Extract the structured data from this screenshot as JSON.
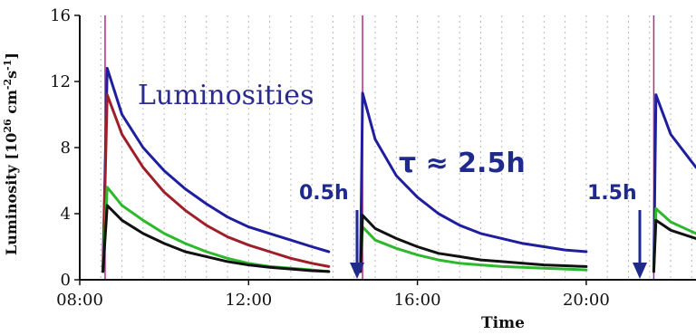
{
  "chart_data": {
    "type": "line",
    "title": "",
    "ylabel_main": "Luminosity [10",
    "ylabel_sup1": "26",
    "ylabel_mid": " cm",
    "ylabel_sup2": "-2",
    "ylabel_mid2": "s",
    "ylabel_sup3": "-1",
    "ylabel_end": "]",
    "xlabel": "Time",
    "x_ticks": [
      "08:00",
      "12:00",
      "16:00",
      "20:00"
    ],
    "x_tick_hours": [
      8,
      12,
      16,
      20
    ],
    "y_ticks": [
      "0",
      "4",
      "8",
      "12",
      "16"
    ],
    "y_tick_values": [
      0,
      4,
      8,
      12,
      16
    ],
    "xlim": [
      8.0,
      22.6
    ],
    "ylim": [
      0,
      16
    ],
    "grid": "vertical dotted",
    "annotations": {
      "luminosities": "Luminosities",
      "tau": "τ ≈ 2.5h",
      "gap1": "0.5h",
      "gap2": "1.5h"
    },
    "fill_markers_hours": [
      8.6,
      14.7,
      21.6
    ],
    "colors": {
      "blue": "#1f1f9e",
      "red": "#9e1f2a",
      "green": "#2eb82e",
      "black": "#111111",
      "marker": "#b02a8a",
      "grid": "#b8b8b8",
      "annotation": "#1f2a8c"
    },
    "series": [
      {
        "color": "blue",
        "x": [
          8.55,
          8.65,
          9.0,
          9.5,
          10.0,
          10.5,
          11.0,
          11.5,
          12.0,
          12.5,
          13.0,
          13.5,
          13.9,
          14.65,
          14.7,
          15.0,
          15.5,
          16.0,
          16.5,
          17.0,
          17.5,
          18.0,
          18.5,
          19.0,
          19.5,
          20.0,
          21.6,
          21.65,
          22.0,
          22.6
        ],
        "y": [
          0.5,
          12.8,
          10.0,
          8.0,
          6.6,
          5.5,
          4.6,
          3.8,
          3.2,
          2.8,
          2.4,
          2.0,
          1.7,
          0.5,
          11.3,
          8.5,
          6.3,
          5.0,
          4.0,
          3.3,
          2.8,
          2.5,
          2.2,
          2.0,
          1.8,
          1.7,
          0.5,
          11.2,
          8.8,
          6.8
        ],
        "segments": [
          [
            0,
            12
          ],
          [
            13,
            25
          ],
          [
            26,
            29
          ]
        ]
      },
      {
        "color": "red",
        "x": [
          8.55,
          8.65,
          9.0,
          9.5,
          10.0,
          10.5,
          11.0,
          11.5,
          12.0,
          12.5,
          13.0,
          13.5,
          13.9
        ],
        "y": [
          0.5,
          11.2,
          8.8,
          6.8,
          5.3,
          4.2,
          3.3,
          2.6,
          2.1,
          1.7,
          1.3,
          1.0,
          0.8
        ],
        "segments": [
          [
            0,
            12
          ]
        ]
      },
      {
        "color": "green",
        "x": [
          8.55,
          8.65,
          9.0,
          9.5,
          10.0,
          10.5,
          11.0,
          11.5,
          12.0,
          12.5,
          13.0,
          13.5,
          13.9,
          14.65,
          14.7,
          15.0,
          15.5,
          16.0,
          16.5,
          17.0,
          17.5,
          18.0,
          18.5,
          19.0,
          19.5,
          20.0,
          21.6,
          21.65,
          22.0,
          22.6
        ],
        "y": [
          0.5,
          5.6,
          4.5,
          3.6,
          2.8,
          2.2,
          1.7,
          1.3,
          1.0,
          0.8,
          0.7,
          0.6,
          0.5,
          0.5,
          3.2,
          2.4,
          1.9,
          1.5,
          1.2,
          1.0,
          0.9,
          0.8,
          0.75,
          0.7,
          0.65,
          0.6,
          0.5,
          4.3,
          3.5,
          2.8
        ],
        "segments": [
          [
            0,
            12
          ],
          [
            13,
            25
          ],
          [
            26,
            29
          ]
        ]
      },
      {
        "color": "black",
        "x": [
          8.55,
          8.65,
          9.0,
          9.5,
          10.0,
          10.5,
          11.0,
          11.5,
          12.0,
          12.5,
          13.0,
          13.5,
          13.9,
          14.65,
          14.7,
          15.0,
          15.5,
          16.0,
          16.5,
          17.0,
          17.5,
          18.0,
          18.5,
          19.0,
          19.5,
          20.0,
          21.6,
          21.65,
          22.0,
          22.6
        ],
        "y": [
          0.5,
          4.5,
          3.6,
          2.8,
          2.2,
          1.7,
          1.4,
          1.1,
          0.9,
          0.75,
          0.65,
          0.55,
          0.5,
          0.5,
          3.9,
          3.1,
          2.5,
          2.0,
          1.6,
          1.4,
          1.2,
          1.1,
          1.0,
          0.9,
          0.85,
          0.8,
          0.5,
          3.6,
          3.0,
          2.5
        ],
        "segments": [
          [
            0,
            12
          ],
          [
            13,
            25
          ],
          [
            26,
            29
          ]
        ]
      }
    ]
  }
}
